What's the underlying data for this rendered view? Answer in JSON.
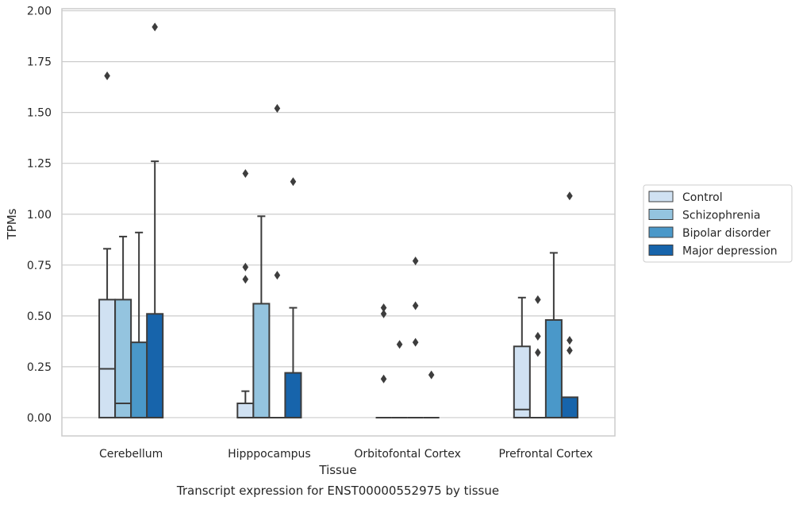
{
  "chart_data": {
    "type": "boxplot",
    "title": "",
    "xlabel": "Tissue",
    "ylabel": "TPMs",
    "caption": "Transcript expression for ENST00000552975 by tissue",
    "ylim": [
      -0.09,
      2.01
    ],
    "yticks": [
      0.0,
      0.25,
      0.5,
      0.75,
      1.0,
      1.25,
      1.5,
      1.75,
      2.0
    ],
    "ytick_labels": [
      "0.00",
      "0.25",
      "0.50",
      "0.75",
      "1.00",
      "1.25",
      "1.50",
      "1.75",
      "2.00"
    ],
    "grid": "horizontal",
    "legend_position": "right",
    "categories": [
      "Cerebellum",
      "Hipppocampus",
      "Orbitofontal Cortex",
      "Prefrontal Cortex"
    ],
    "series": [
      {
        "name": "Control",
        "color": "#d0e1f2",
        "boxes": [
          {
            "q1": 0.0,
            "median": 0.24,
            "q3": 0.58,
            "whisker_low": 0.0,
            "whisker_high": 0.83,
            "outliers": [
              1.68
            ]
          },
          {
            "q1": 0.0,
            "median": 0.0,
            "q3": 0.07,
            "whisker_low": 0.0,
            "whisker_high": 0.13,
            "outliers": [
              0.68,
              0.74,
              1.2
            ]
          },
          {
            "q1": 0.0,
            "median": 0.0,
            "q3": 0.0,
            "whisker_low": 0.0,
            "whisker_high": 0.0,
            "outliers": [
              0.19,
              0.51,
              0.54
            ]
          },
          {
            "q1": 0.0,
            "median": 0.04,
            "q3": 0.35,
            "whisker_low": 0.0,
            "whisker_high": 0.59,
            "outliers": []
          }
        ]
      },
      {
        "name": "Schizophrenia",
        "color": "#94c4df",
        "boxes": [
          {
            "q1": 0.0,
            "median": 0.07,
            "q3": 0.58,
            "whisker_low": 0.0,
            "whisker_high": 0.89,
            "outliers": []
          },
          {
            "q1": 0.0,
            "median": 0.0,
            "q3": 0.56,
            "whisker_low": 0.0,
            "whisker_high": 0.99,
            "outliers": []
          },
          {
            "q1": 0.0,
            "median": 0.0,
            "q3": 0.0,
            "whisker_low": 0.0,
            "whisker_high": 0.0,
            "outliers": [
              0.36
            ]
          },
          {
            "q1": 0.0,
            "median": 0.0,
            "q3": 0.0,
            "whisker_low": 0.0,
            "whisker_high": 0.0,
            "outliers": [
              0.32,
              0.4,
              0.58
            ]
          }
        ]
      },
      {
        "name": "Bipolar disorder",
        "color": "#4a98c9",
        "boxes": [
          {
            "q1": 0.0,
            "median": 0.0,
            "q3": 0.37,
            "whisker_low": 0.0,
            "whisker_high": 0.91,
            "outliers": []
          },
          {
            "q1": 0.0,
            "median": 0.0,
            "q3": 0.0,
            "whisker_low": 0.0,
            "whisker_high": 0.0,
            "outliers": [
              0.7,
              1.52
            ]
          },
          {
            "q1": 0.0,
            "median": 0.0,
            "q3": 0.0,
            "whisker_low": 0.0,
            "whisker_high": 0.0,
            "outliers": [
              0.37,
              0.55,
              0.77
            ]
          },
          {
            "q1": 0.0,
            "median": 0.0,
            "q3": 0.48,
            "whisker_low": 0.0,
            "whisker_high": 0.81,
            "outliers": []
          }
        ]
      },
      {
        "name": "Major depression",
        "color": "#1764ab",
        "boxes": [
          {
            "q1": 0.0,
            "median": 0.0,
            "q3": 0.51,
            "whisker_low": 0.0,
            "whisker_high": 1.26,
            "outliers": [
              1.92
            ]
          },
          {
            "q1": 0.0,
            "median": 0.0,
            "q3": 0.22,
            "whisker_low": 0.0,
            "whisker_high": 0.54,
            "outliers": [
              1.16
            ]
          },
          {
            "q1": 0.0,
            "median": 0.0,
            "q3": 0.0,
            "whisker_low": 0.0,
            "whisker_high": 0.0,
            "outliers": [
              0.21
            ]
          },
          {
            "q1": 0.0,
            "median": 0.0,
            "q3": 0.1,
            "whisker_low": 0.0,
            "whisker_high": 0.1,
            "outliers": [
              0.33,
              0.38,
              1.09
            ]
          }
        ]
      }
    ]
  }
}
